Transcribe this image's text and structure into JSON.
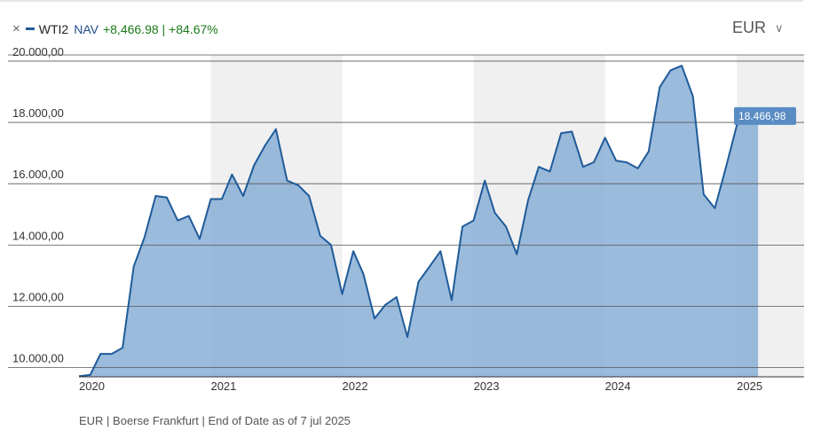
{
  "legend": {
    "close_symbol": "×",
    "ticker": "WTI2",
    "nav_label": "NAV",
    "change_text": "+8,466.98 | +84.67%",
    "series_color": "#1f5b99"
  },
  "currency_selector": {
    "value": "EUR",
    "chevron": "∨"
  },
  "footer": {
    "text": "EUR | Boerse Frankfurt | End of Date as of 7 jul 2025"
  },
  "last_value_label": "18.466,98",
  "colors": {
    "line": "#1f5b99",
    "area": "#8aafd6",
    "label_bg": "#5a8cc4",
    "year_band": "#f0f0f0",
    "gridline": "#555555"
  },
  "chart_data": {
    "type": "area",
    "title": "",
    "xlabel": "",
    "ylabel": "",
    "x_ticks": [
      "2020",
      "2021",
      "2022",
      "2023",
      "2024",
      "2025"
    ],
    "y_ticks": [
      "10.000,00",
      "12.000,00",
      "14.000,00",
      "16.000,00",
      "18.000,00",
      "20.000,00"
    ],
    "ylim": [
      9700,
      20200
    ],
    "xlim": [
      "2020-01-01",
      "2025-07-07"
    ],
    "grid": "horizontal",
    "alternating_year_bands": true,
    "series": [
      {
        "name": "WTI2",
        "points": [
          [
            "2020-01-01",
            9720
          ],
          [
            "2020-02-01",
            9760
          ],
          [
            "2020-03-01",
            10450
          ],
          [
            "2020-04-01",
            10450
          ],
          [
            "2020-05-01",
            10650
          ],
          [
            "2020-06-01",
            13300
          ],
          [
            "2020-07-01",
            14250
          ],
          [
            "2020-08-01",
            15600
          ],
          [
            "2020-09-01",
            15550
          ],
          [
            "2020-10-01",
            14800
          ],
          [
            "2020-11-01",
            14950
          ],
          [
            "2020-12-01",
            14200
          ],
          [
            "2021-01-01",
            15500
          ],
          [
            "2021-02-01",
            15500
          ],
          [
            "2021-03-01",
            16300
          ],
          [
            "2021-04-01",
            15600
          ],
          [
            "2021-05-01",
            16600
          ],
          [
            "2021-06-01",
            17250
          ],
          [
            "2021-07-01",
            17780
          ],
          [
            "2021-08-01",
            16100
          ],
          [
            "2021-09-01",
            15950
          ],
          [
            "2021-10-01",
            15600
          ],
          [
            "2021-11-01",
            14300
          ],
          [
            "2021-12-01",
            14000
          ],
          [
            "2022-01-01",
            12400
          ],
          [
            "2022-02-01",
            13800
          ],
          [
            "2022-03-01",
            13050
          ],
          [
            "2022-04-01",
            11600
          ],
          [
            "2022-05-01",
            12050
          ],
          [
            "2022-06-01",
            12300
          ],
          [
            "2022-07-01",
            11000
          ],
          [
            "2022-08-01",
            12800
          ],
          [
            "2022-09-01",
            13300
          ],
          [
            "2022-10-01",
            13800
          ],
          [
            "2022-11-01",
            12200
          ],
          [
            "2022-12-01",
            14600
          ],
          [
            "2023-01-01",
            14800
          ],
          [
            "2023-02-01",
            16100
          ],
          [
            "2023-03-01",
            15050
          ],
          [
            "2023-04-01",
            14600
          ],
          [
            "2023-05-01",
            13700
          ],
          [
            "2023-06-01",
            15450
          ],
          [
            "2023-07-01",
            16550
          ],
          [
            "2023-08-01",
            16400
          ],
          [
            "2023-09-01",
            17650
          ],
          [
            "2023-10-01",
            17700
          ],
          [
            "2023-11-01",
            16550
          ],
          [
            "2023-12-01",
            16700
          ],
          [
            "2024-01-01",
            17500
          ],
          [
            "2024-02-01",
            16750
          ],
          [
            "2024-03-01",
            16700
          ],
          [
            "2024-04-01",
            16500
          ],
          [
            "2024-05-01",
            17050
          ],
          [
            "2024-06-01",
            19150
          ],
          [
            "2024-07-01",
            19700
          ],
          [
            "2024-08-01",
            19850
          ],
          [
            "2024-09-01",
            18850
          ],
          [
            "2024-10-01",
            15650
          ],
          [
            "2024-11-01",
            15200
          ],
          [
            "2024-12-01",
            16500
          ],
          [
            "2025-01-01",
            17900
          ],
          [
            "2025-02-01",
            18300
          ],
          [
            "2025-03-01",
            18466.98
          ]
        ]
      }
    ]
  }
}
